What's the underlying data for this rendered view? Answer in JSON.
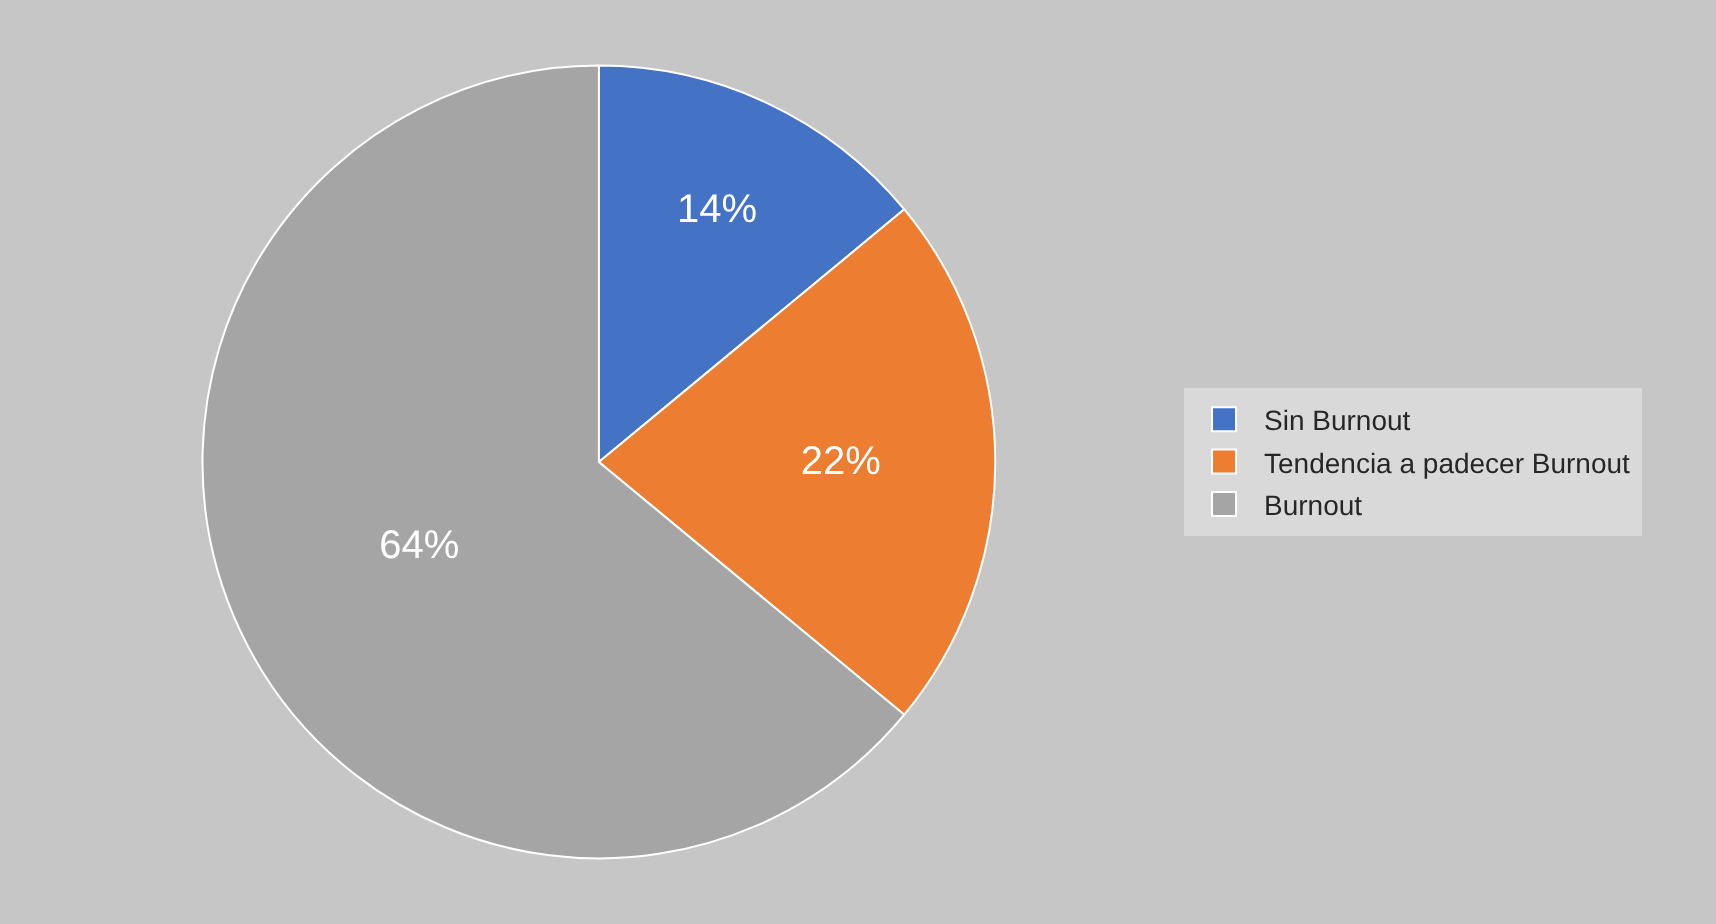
{
  "chart_data": {
    "type": "pie",
    "categories": [
      "Sin Burnout",
      "Tendencia a padecer Burnout",
      "Burnout"
    ],
    "values": [
      14,
      22,
      64
    ],
    "colors": [
      "#4472c4",
      "#ed7d31",
      "#a5a5a5"
    ],
    "value_labels": [
      "14%",
      "22%",
      "64%"
    ],
    "legend": "right"
  }
}
